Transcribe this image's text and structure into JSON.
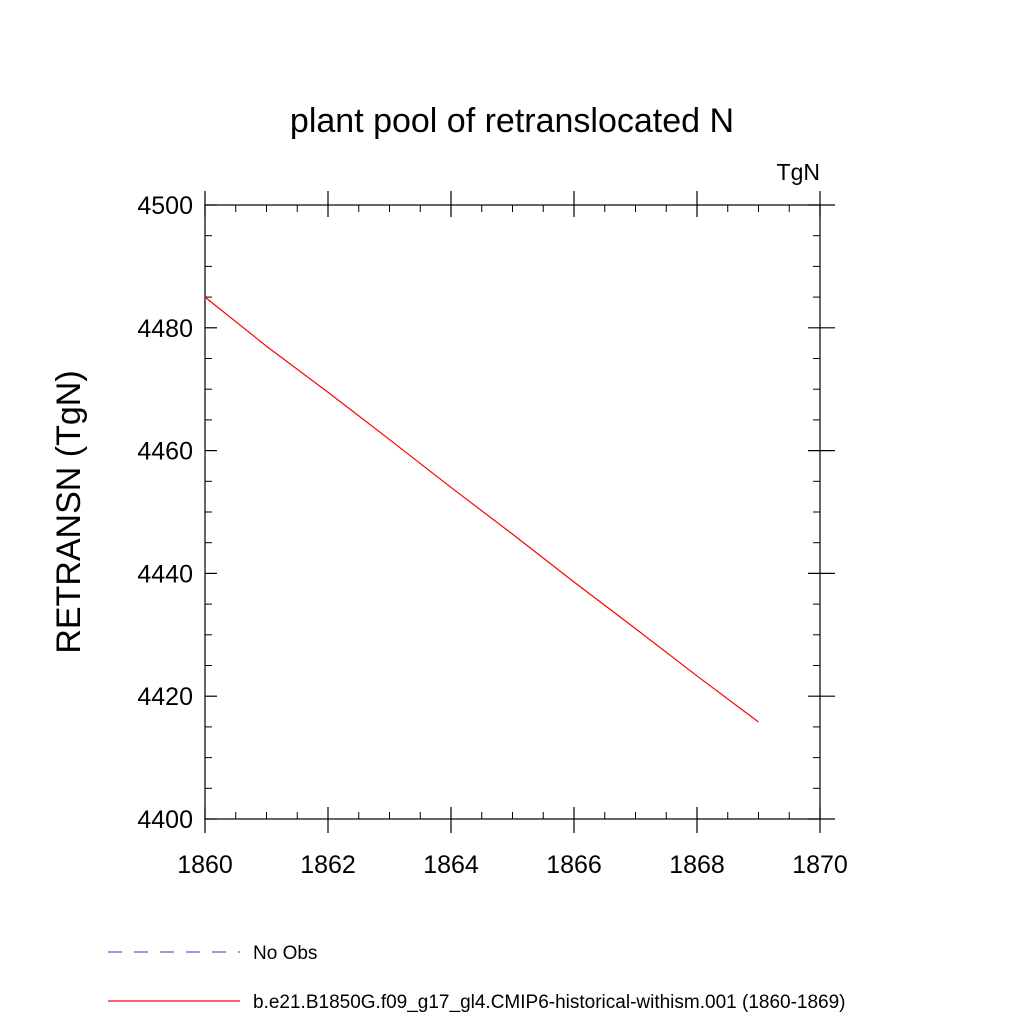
{
  "chart_data": {
    "type": "line",
    "title": "plant pool of retranslocated N",
    "units_label": "TgN",
    "ylabel": "RETRANSN  (TgN)",
    "xlabel": "",
    "xlim": [
      1860,
      1870
    ],
    "ylim": [
      4400,
      4500
    ],
    "x_ticks": [
      1860,
      1862,
      1864,
      1866,
      1868,
      1870
    ],
    "y_ticks": [
      4400,
      4420,
      4440,
      4460,
      4480,
      4500
    ],
    "grid": false,
    "legend_position": "bottom",
    "series": [
      {
        "name": "No Obs",
        "color": "#6a5acd",
        "dash": "dashed",
        "x": [],
        "y": []
      },
      {
        "name": "b.e21.B1850G.f09_g17_gl4.CMIP6-historical-withism.001 (1860-1869)",
        "color": "#ff0000",
        "dash": "solid",
        "x": [
          1860,
          1861,
          1862,
          1863,
          1864,
          1865,
          1866,
          1867,
          1868,
          1869
        ],
        "y": [
          4485.0,
          4477.0,
          4469.5,
          4461.8,
          4454.0,
          4446.4,
          4438.6,
          4431.0,
          4423.3,
          4415.8
        ]
      }
    ]
  }
}
